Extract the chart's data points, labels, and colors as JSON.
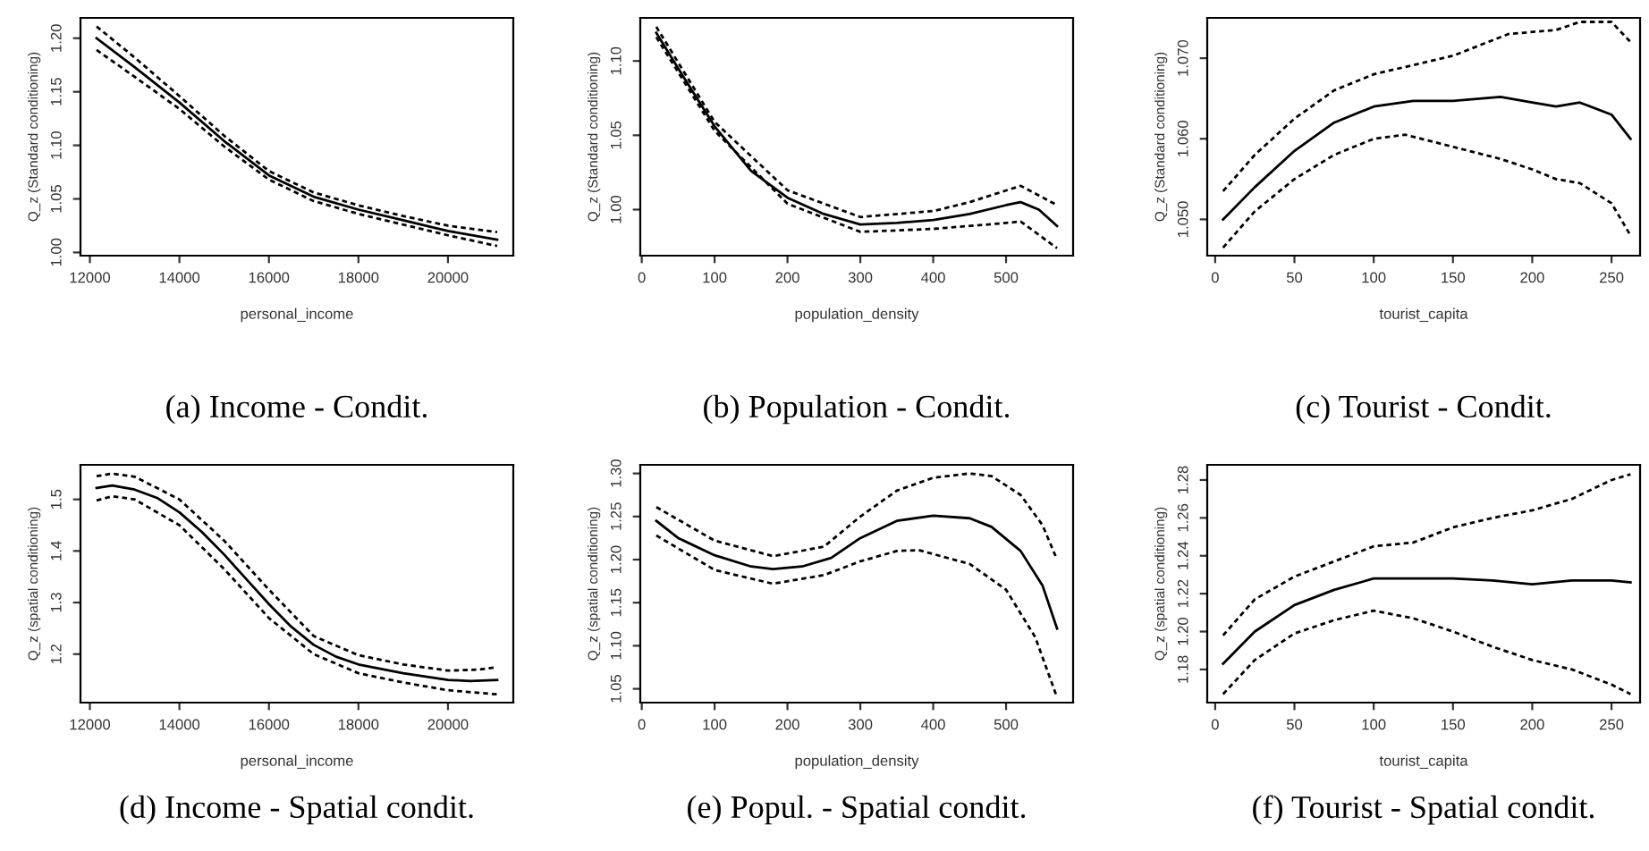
{
  "chart_data": [
    {
      "type": "line",
      "title": "(a) Income - Condit.",
      "xlabel": "personal_income",
      "ylabel": "Q_z (Standard conditioning)",
      "grid": false,
      "legend": false,
      "xlim": [
        11790,
        21460
      ],
      "ylim": [
        0.997,
        1.219
      ],
      "xticks": [
        12000,
        14000,
        16000,
        18000,
        20000
      ],
      "yticks": [
        {
          "value": 1.0,
          "label": "1.00"
        },
        {
          "value": 1.05,
          "label": "1.05"
        },
        {
          "value": 1.1,
          "label": "1.10"
        },
        {
          "value": 1.15,
          "label": "1.15"
        },
        {
          "value": 1.2,
          "label": "1.20"
        }
      ],
      "series": [
        {
          "color": "#000000",
          "line_style": "solid",
          "x": [
            12150,
            13000,
            14000,
            15000,
            16000,
            17000,
            18000,
            19000,
            20000,
            21100
          ],
          "values": [
            1.2,
            1.173,
            1.14,
            1.104,
            1.072,
            1.052,
            1.04,
            1.03,
            1.02,
            1.012
          ]
        },
        {
          "color": "#000000",
          "line_style": "dotted",
          "x": [
            12150,
            13000,
            14000,
            15000,
            16000,
            17000,
            18000,
            19000,
            20000,
            21100
          ],
          "values": [
            1.211,
            1.182,
            1.146,
            1.109,
            1.076,
            1.056,
            1.044,
            1.034,
            1.025,
            1.019
          ]
        },
        {
          "color": "#000000",
          "line_style": "dotted",
          "x": [
            12150,
            13000,
            14000,
            15000,
            16000,
            17000,
            18000,
            19000,
            20000,
            21100
          ],
          "values": [
            1.189,
            1.164,
            1.134,
            1.099,
            1.068,
            1.048,
            1.036,
            1.026,
            1.016,
            1.006
          ]
        }
      ]
    },
    {
      "type": "line",
      "title": "(b) Population - Condit.",
      "xlabel": "population_density",
      "ylabel": "Q_z (Standard conditioning)",
      "grid": false,
      "legend": false,
      "xlim": [
        -2,
        592
      ],
      "ylim": [
        0.969,
        1.129
      ],
      "xticks": [
        0,
        100,
        200,
        300,
        400,
        500
      ],
      "yticks": [
        {
          "value": 1.0,
          "label": "1.00"
        },
        {
          "value": 1.05,
          "label": "1.05"
        },
        {
          "value": 1.1,
          "label": "1.10"
        }
      ],
      "series": [
        {
          "color": "#000000",
          "line_style": "solid",
          "x": [
            20,
            50,
            100,
            150,
            200,
            250,
            300,
            350,
            400,
            450,
            500,
            520,
            545,
            570
          ],
          "values": [
            1.119,
            1.095,
            1.056,
            1.026,
            1.008,
            0.997,
            0.99,
            0.991,
            0.993,
            0.997,
            1.003,
            1.005,
            1.0,
            0.989
          ]
        },
        {
          "color": "#000000",
          "line_style": "dotted",
          "x": [
            20,
            100,
            200,
            300,
            400,
            450,
            520,
            570
          ],
          "values": [
            1.123,
            1.059,
            1.013,
            0.995,
            0.999,
            1.005,
            1.016,
            1.003
          ]
        },
        {
          "color": "#000000",
          "line_style": "dotted",
          "x": [
            20,
            100,
            200,
            300,
            400,
            500,
            520,
            570
          ],
          "values": [
            1.116,
            1.053,
            1.004,
            0.985,
            0.987,
            0.991,
            0.992,
            0.974
          ]
        }
      ]
    },
    {
      "type": "line",
      "title": "(c) Tourist - Condit.",
      "xlabel": "tourist_capita",
      "ylabel": "Q_z (Standard conditioning)",
      "grid": false,
      "legend": false,
      "xlim": [
        -5,
        268
      ],
      "ylim": [
        1.0455,
        1.075
      ],
      "xticks": [
        0,
        50,
        100,
        150,
        200,
        250
      ],
      "yticks": [
        {
          "value": 1.05,
          "label": "1.050"
        },
        {
          "value": 1.06,
          "label": "1.060"
        },
        {
          "value": 1.07,
          "label": "1.070"
        }
      ],
      "series": [
        {
          "color": "#000000",
          "line_style": "solid",
          "x": [
            5,
            25,
            50,
            75,
            100,
            125,
            150,
            180,
            200,
            215,
            230,
            250,
            262
          ],
          "values": [
            1.05,
            1.054,
            1.0585,
            1.062,
            1.064,
            1.0647,
            1.0647,
            1.0652,
            1.0645,
            1.064,
            1.0645,
            1.063,
            1.06
          ]
        },
        {
          "color": "#000000",
          "line_style": "dotted",
          "x": [
            5,
            25,
            50,
            75,
            100,
            150,
            185,
            215,
            230,
            250,
            262
          ],
          "values": [
            1.0535,
            1.058,
            1.0625,
            1.066,
            1.068,
            1.0703,
            1.073,
            1.0735,
            1.0745,
            1.0745,
            1.072
          ]
        },
        {
          "color": "#000000",
          "line_style": "dotted",
          "x": [
            5,
            25,
            50,
            75,
            100,
            120,
            150,
            180,
            200,
            215,
            230,
            250,
            262
          ],
          "values": [
            1.0465,
            1.051,
            1.055,
            1.058,
            1.06,
            1.0605,
            1.059,
            1.0575,
            1.0562,
            1.055,
            1.0545,
            1.052,
            1.048
          ]
        }
      ]
    },
    {
      "type": "line",
      "title": "(d) Income - Spatial condit.",
      "xlabel": "personal_income",
      "ylabel": "Q_z (spatial conditioning)",
      "grid": false,
      "legend": false,
      "xlim": [
        11790,
        21460
      ],
      "ylim": [
        1.106,
        1.567
      ],
      "xticks": [
        12000,
        14000,
        16000,
        18000,
        20000
      ],
      "yticks": [
        1.2,
        1.3,
        1.4,
        1.5
      ],
      "series": [
        {
          "color": "#000000",
          "line_style": "solid",
          "x": [
            12150,
            12500,
            13000,
            13500,
            14000,
            14500,
            15000,
            15500,
            16000,
            16500,
            17000,
            17500,
            18000,
            19000,
            20000,
            20500,
            21100
          ],
          "values": [
            1.522,
            1.527,
            1.519,
            1.503,
            1.475,
            1.437,
            1.393,
            1.345,
            1.297,
            1.253,
            1.218,
            1.195,
            1.18,
            1.163,
            1.15,
            1.148,
            1.15
          ]
        },
        {
          "color": "#000000",
          "line_style": "dotted",
          "x": [
            12150,
            12500,
            13000,
            14000,
            15000,
            16000,
            17000,
            18000,
            19000,
            20000,
            20700,
            21100
          ],
          "values": [
            1.545,
            1.55,
            1.544,
            1.5,
            1.42,
            1.325,
            1.235,
            1.198,
            1.18,
            1.168,
            1.17,
            1.175
          ]
        },
        {
          "color": "#000000",
          "line_style": "dotted",
          "x": [
            12150,
            12500,
            13000,
            14000,
            15000,
            16000,
            17000,
            18000,
            19000,
            20000,
            21100
          ],
          "values": [
            1.498,
            1.506,
            1.5,
            1.45,
            1.365,
            1.27,
            1.2,
            1.163,
            1.145,
            1.13,
            1.122
          ]
        }
      ]
    },
    {
      "type": "line",
      "title": "(e) Popul. - Spatial condit.",
      "xlabel": "population_density",
      "ylabel": "Q_z (spatial conditioning)",
      "grid": false,
      "legend": false,
      "xlim": [
        -2,
        592
      ],
      "ylim": [
        1.034,
        1.31
      ],
      "xticks": [
        0,
        100,
        200,
        300,
        400,
        500
      ],
      "yticks": [
        {
          "value": 1.05,
          "label": "1.05"
        },
        {
          "value": 1.1,
          "label": "1.10"
        },
        {
          "value": 1.15,
          "label": "1.15"
        },
        {
          "value": 1.2,
          "label": "1.20"
        },
        {
          "value": 1.25,
          "label": "1.25"
        },
        {
          "value": 1.3,
          "label": "1.30"
        }
      ],
      "series": [
        {
          "color": "#000000",
          "line_style": "solid",
          "x": [
            20,
            50,
            100,
            150,
            180,
            220,
            260,
            300,
            350,
            400,
            450,
            480,
            520,
            550,
            570
          ],
          "values": [
            1.245,
            1.225,
            1.205,
            1.192,
            1.189,
            1.192,
            1.202,
            1.225,
            1.245,
            1.251,
            1.248,
            1.238,
            1.21,
            1.17,
            1.12
          ]
        },
        {
          "color": "#000000",
          "line_style": "dotted",
          "x": [
            20,
            100,
            180,
            250,
            300,
            350,
            400,
            450,
            480,
            520,
            550,
            570
          ],
          "values": [
            1.261,
            1.222,
            1.204,
            1.215,
            1.25,
            1.28,
            1.295,
            1.3,
            1.297,
            1.275,
            1.24,
            1.2
          ]
        },
        {
          "color": "#000000",
          "line_style": "dotted",
          "x": [
            20,
            100,
            180,
            250,
            300,
            350,
            380,
            450,
            500,
            540,
            570
          ],
          "values": [
            1.228,
            1.188,
            1.172,
            1.182,
            1.198,
            1.21,
            1.211,
            1.195,
            1.165,
            1.11,
            1.04
          ]
        }
      ]
    },
    {
      "type": "line",
      "title": "(f) Tourist - Spatial condit.",
      "xlabel": "tourist_capita",
      "ylabel": "Q_z (spatial conditioning)",
      "grid": false,
      "legend": false,
      "xlim": [
        -5,
        268
      ],
      "ylim": [
        1.1625,
        1.288
      ],
      "xticks": [
        0,
        50,
        100,
        150,
        200,
        250
      ],
      "yticks": [
        1.18,
        {
          "value": 1.2,
          "label": "1.20"
        },
        1.22,
        1.24,
        1.26,
        1.28
      ],
      "series": [
        {
          "color": "#000000",
          "line_style": "solid",
          "x": [
            5,
            25,
            50,
            75,
            100,
            150,
            175,
            200,
            225,
            250,
            262
          ],
          "values": [
            1.183,
            1.2,
            1.214,
            1.222,
            1.228,
            1.228,
            1.227,
            1.225,
            1.227,
            1.227,
            1.226
          ]
        },
        {
          "color": "#000000",
          "line_style": "dotted",
          "x": [
            5,
            25,
            50,
            75,
            100,
            125,
            150,
            175,
            200,
            225,
            250,
            262
          ],
          "values": [
            1.198,
            1.217,
            1.229,
            1.237,
            1.245,
            1.247,
            1.255,
            1.26,
            1.264,
            1.27,
            1.28,
            1.283
          ]
        },
        {
          "color": "#000000",
          "line_style": "dotted",
          "x": [
            5,
            25,
            50,
            75,
            100,
            125,
            150,
            175,
            200,
            225,
            250,
            262
          ],
          "values": [
            1.167,
            1.185,
            1.199,
            1.206,
            1.211,
            1.207,
            1.2,
            1.192,
            1.185,
            1.18,
            1.172,
            1.167
          ]
        }
      ]
    }
  ]
}
